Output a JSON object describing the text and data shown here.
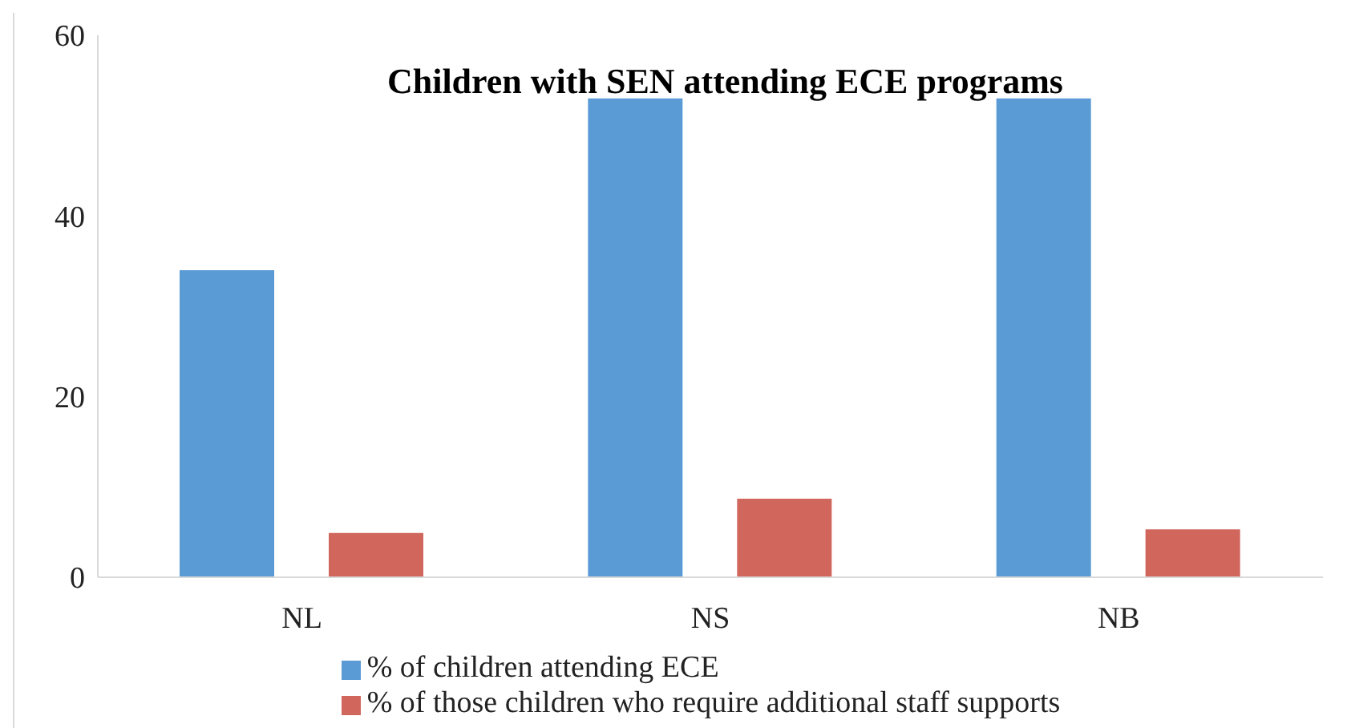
{
  "chart_data": {
    "type": "bar",
    "title": "Children with SEN attending ECE programs",
    "categories": [
      "NL",
      "NS",
      "NB"
    ],
    "series": [
      {
        "name": "% of children attending ECE",
        "color": "#5b9bd5",
        "values": [
          34,
          53,
          53
        ]
      },
      {
        "name": "% of those children who require additional staff supports",
        "color": "#d0665c",
        "values": [
          4.9,
          8.7,
          5.3
        ]
      }
    ],
    "ylim": [
      0,
      60
    ],
    "yticks": [
      0,
      20,
      40,
      60
    ],
    "grid": false,
    "legend": "bottom"
  }
}
